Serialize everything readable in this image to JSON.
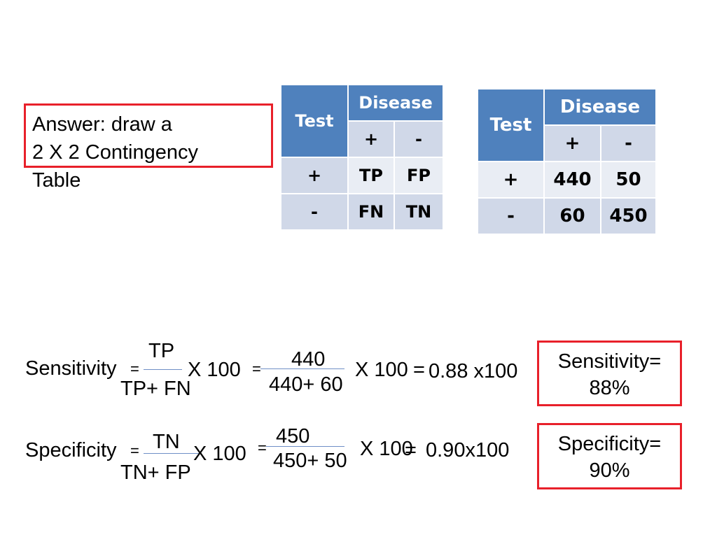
{
  "answer": {
    "line1": "Answer: draw a",
    "line2": "2 X 2 Contingency",
    "line3": "Table"
  },
  "table_generic": {
    "test_header": "Test",
    "disease_header": "Disease",
    "disease_pos": "+",
    "disease_neg": "-",
    "rows": [
      {
        "label": "+",
        "cells": [
          "TP",
          "FP"
        ]
      },
      {
        "label": "-",
        "cells": [
          "FN",
          "TN"
        ]
      }
    ]
  },
  "table_values": {
    "test_header": "Test",
    "disease_header": "Disease",
    "disease_pos": "+",
    "disease_neg": "-",
    "rows": [
      {
        "label": "+",
        "cells": [
          "440",
          "50"
        ]
      },
      {
        "label": "-",
        "cells": [
          "60",
          "450"
        ]
      }
    ]
  },
  "sensitivity": {
    "label": "Sensitivity",
    "eq": "=",
    "numerator": "TP",
    "denominator": "TP+ FN",
    "times": "X 100",
    "eq2": "=",
    "num_value": "440",
    "den_value": "440+ 60",
    "times2": "X 100",
    "eq3": "=",
    "result_expr": "0.88 x100",
    "result_label": "Sensitivity=",
    "result_value": "88%"
  },
  "specificity": {
    "label": "Specificity",
    "eq": "=",
    "numerator": "TN",
    "denominator": "TN+ FP",
    "times": "X 100",
    "eq2": "=",
    "num_value": "450",
    "den_value": "450+ 50",
    "times2": "X 100",
    "eq3": "=",
    "result_expr": "0.90x100",
    "result_label": "Specificity=",
    "result_value": "90%"
  },
  "colors": {
    "header_blue": "#4f81bd",
    "cell_dark": "#d0d8e8",
    "cell_light": "#e9edf4",
    "box_red": "#e8202a"
  }
}
